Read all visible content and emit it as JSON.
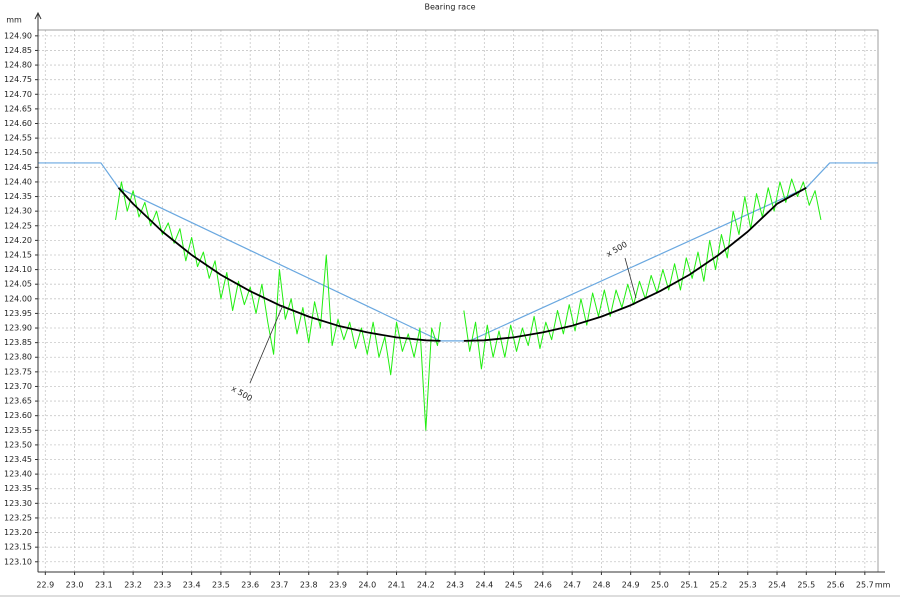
{
  "chart_data": {
    "type": "line",
    "title": "Bearing race",
    "y_label": "mm",
    "x_label": "mm",
    "xlim": [
      22.875,
      25.745
    ],
    "ylim": [
      123.065,
      124.92
    ],
    "grid": true,
    "xticks": [
      22.9,
      {
        "value": 23,
        "label": "23.0"
      },
      23.1,
      23.2,
      23.3,
      23.4,
      23.5,
      23.6,
      23.7,
      23.8,
      23.9,
      {
        "value": 24,
        "label": "24.0"
      },
      24.1,
      24.2,
      24.3,
      24.4,
      24.5,
      24.6,
      24.7,
      24.8,
      24.9,
      {
        "value": 25,
        "label": "25.0"
      },
      25.1,
      25.2,
      25.3,
      25.4,
      25.5,
      25.6,
      25.7
    ],
    "yticks": [
      {
        "value": 123.1,
        "label": "123.10"
      },
      123.15,
      {
        "value": 123.2,
        "label": "123.20"
      },
      123.25,
      {
        "value": 123.3,
        "label": "123.30"
      },
      123.35,
      {
        "value": 123.4,
        "label": "123.40"
      },
      123.45,
      {
        "value": 123.5,
        "label": "123.50"
      },
      123.55,
      {
        "value": 123.6,
        "label": "123.60"
      },
      123.65,
      {
        "value": 123.7,
        "label": "123.70"
      },
      123.75,
      {
        "value": 123.8,
        "label": "123.80"
      },
      123.85,
      {
        "value": 123.9,
        "label": "123.90"
      },
      123.95,
      {
        "value": 124,
        "label": "124.00"
      },
      124.05,
      {
        "value": 124.1,
        "label": "124.10"
      },
      124.15,
      {
        "value": 124.2,
        "label": "124.20"
      },
      124.25,
      {
        "value": 124.3,
        "label": "124.30"
      },
      124.35,
      {
        "value": 124.4,
        "label": "124.40"
      },
      124.45,
      {
        "value": 124.5,
        "label": "124.50"
      },
      124.55,
      {
        "value": 124.6,
        "label": "124.60"
      },
      124.65,
      {
        "value": 124.7,
        "label": "124.70"
      },
      124.75,
      {
        "value": 124.8,
        "label": "124.80"
      },
      124.85,
      {
        "value": 124.9,
        "label": "124.90"
      }
    ],
    "series": [
      {
        "color": "#6aa8e0",
        "width": 1.2,
        "x": [
          22.875,
          23.09,
          23.15,
          24.25,
          24.35,
          25.5,
          25.58,
          25.745
        ],
        "values": [
          124.465,
          124.465,
          124.38,
          123.856,
          123.856,
          124.38,
          124.465,
          124.465
        ]
      },
      {
        "color": "#22ee11",
        "width": 1,
        "x": [
          23.14,
          23.16,
          23.18,
          23.2,
          23.22,
          23.24,
          23.26,
          23.28,
          23.3,
          23.32,
          23.34,
          23.36,
          23.38,
          23.4,
          23.42,
          23.44,
          23.46,
          23.48,
          23.5,
          23.52,
          23.54,
          23.56,
          23.58,
          23.6,
          23.62,
          23.64,
          23.66,
          23.68,
          23.7,
          23.72,
          23.74,
          23.76,
          23.78,
          23.8,
          23.82,
          23.84,
          23.86,
          23.88,
          23.9,
          23.92,
          23.94,
          23.96,
          23.98,
          24,
          24.02,
          24.04,
          24.06,
          24.08,
          24.1,
          24.12,
          24.14,
          24.16,
          24.18,
          24.2,
          24.22,
          24.24,
          24.25,
          24.29,
          24.33,
          24.35,
          24.37,
          24.39,
          24.41,
          24.43,
          24.45,
          24.47,
          24.49,
          24.51,
          24.53,
          24.55,
          24.57,
          24.59,
          24.61,
          24.63,
          24.65,
          24.67,
          24.69,
          24.71,
          24.73,
          24.75,
          24.77,
          24.79,
          24.81,
          24.83,
          24.85,
          24.87,
          24.89,
          24.91,
          24.93,
          24.95,
          24.97,
          24.99,
          25.01,
          25.03,
          25.05,
          25.07,
          25.09,
          25.11,
          25.13,
          25.15,
          25.17,
          25.19,
          25.21,
          25.23,
          25.25,
          25.27,
          25.29,
          25.31,
          25.33,
          25.35,
          25.37,
          25.39,
          25.41,
          25.43,
          25.45,
          25.47,
          25.49,
          25.51,
          25.53,
          25.55
        ],
        "values": [
          124.27,
          124.4,
          124.3,
          124.37,
          124.28,
          124.33,
          124.25,
          124.3,
          124.22,
          124.26,
          124.19,
          124.24,
          124.13,
          124.21,
          124.11,
          124.16,
          124.07,
          124.13,
          124.0,
          124.09,
          123.96,
          124.06,
          123.98,
          124.04,
          123.95,
          124.05,
          123.92,
          123.81,
          124.1,
          123.93,
          124.0,
          123.88,
          123.97,
          123.85,
          123.99,
          123.9,
          124.15,
          123.84,
          123.93,
          123.86,
          123.92,
          123.83,
          123.9,
          123.81,
          123.92,
          123.8,
          123.87,
          123.74,
          123.92,
          123.82,
          123.88,
          123.8,
          123.9,
          123.55,
          123.9,
          123.84,
          123.92,
          null,
          123.96,
          123.82,
          123.92,
          123.76,
          123.91,
          123.8,
          123.89,
          123.8,
          123.91,
          123.82,
          123.9,
          123.84,
          123.94,
          123.83,
          123.92,
          123.86,
          123.96,
          123.88,
          123.98,
          123.89,
          124.0,
          123.91,
          124.02,
          123.94,
          124.03,
          123.94,
          124.03,
          123.97,
          124.05,
          123.98,
          124.06,
          124.0,
          124.08,
          124.02,
          124.1,
          124.03,
          124.12,
          124.03,
          124.14,
          124.07,
          124.16,
          124.06,
          124.2,
          124.1,
          124.22,
          124.14,
          124.3,
          124.22,
          124.35,
          124.24,
          124.36,
          124.28,
          124.38,
          124.3,
          124.4,
          124.33,
          124.41,
          124.35,
          124.4,
          124.32,
          124.37,
          124.27
        ]
      },
      {
        "color": "#000000",
        "width": 1.8,
        "x": [
          23.15,
          23.2,
          23.3,
          23.4,
          23.5,
          23.6,
          23.7,
          23.8,
          23.9,
          24.0,
          24.1,
          24.2,
          24.25,
          24.29,
          24.33,
          24.4,
          24.5,
          24.6,
          24.7,
          24.8,
          24.9,
          25.0,
          25.1,
          25.2,
          25.3,
          25.4,
          25.5
        ],
        "values": [
          124.38,
          124.325,
          124.23,
          124.15,
          124.082,
          124.026,
          123.978,
          123.939,
          123.908,
          123.885,
          123.868,
          123.858,
          123.856,
          null,
          123.856,
          123.858,
          123.868,
          123.885,
          123.908,
          123.939,
          123.978,
          124.026,
          124.082,
          124.15,
          124.23,
          124.325,
          124.38
        ]
      }
    ],
    "annotations": [
      {
        "text": "x 500"
      },
      {
        "text": "x 500"
      }
    ]
  }
}
